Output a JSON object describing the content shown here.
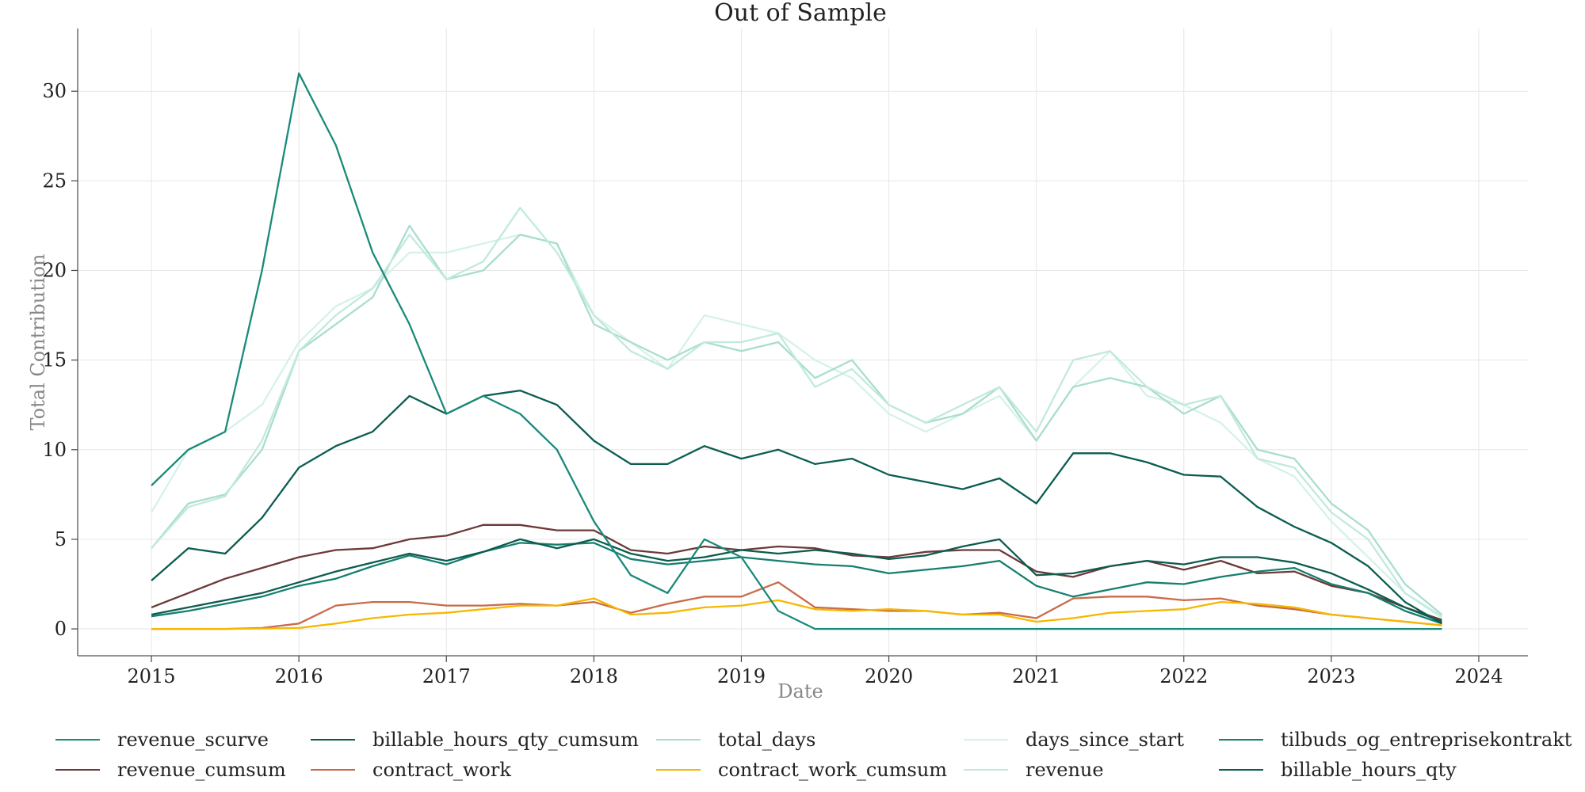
{
  "chart_data": {
    "type": "line",
    "title": "Out of Sample",
    "xlabel": "Date",
    "ylabel": "Total Contribution",
    "x_ticks": [
      "2015",
      "2016",
      "2017",
      "2018",
      "2019",
      "2020",
      "2021",
      "2022",
      "2023",
      "2024"
    ],
    "y_ticks": [
      "0",
      "5",
      "10",
      "15",
      "20",
      "25",
      "30"
    ],
    "xlim": [
      "2014-07",
      "2024-05"
    ],
    "ylim": [
      -1.5,
      33.5
    ],
    "grid": true,
    "legend_position": "bottom",
    "x": [
      "2015-01",
      "2015-04",
      "2015-07",
      "2015-10",
      "2016-01",
      "2016-04",
      "2016-07",
      "2016-10",
      "2017-01",
      "2017-04",
      "2017-07",
      "2017-10",
      "2018-01",
      "2018-04",
      "2018-07",
      "2018-10",
      "2019-01",
      "2019-04",
      "2019-07",
      "2019-10",
      "2020-01",
      "2020-04",
      "2020-07",
      "2020-10",
      "2021-01",
      "2021-04",
      "2021-07",
      "2021-10",
      "2022-01",
      "2022-04",
      "2022-07",
      "2022-10",
      "2023-01",
      "2023-04",
      "2023-07",
      "2023-10"
    ],
    "series": [
      {
        "name": "revenue_scurve",
        "color": "#1a8a7a",
        "values": [
          8,
          10,
          11,
          20,
          31,
          27,
          21,
          17,
          12,
          13,
          12,
          10,
          6,
          3,
          2,
          5,
          4,
          1,
          0,
          0,
          0,
          0,
          0,
          0,
          0,
          0,
          0,
          0,
          0,
          0,
          0,
          0,
          0,
          0,
          0,
          0
        ]
      },
      {
        "name": "billable_hours_qty_cumsum",
        "color": "#0d5c4e",
        "values": [
          0.8,
          1.2,
          1.6,
          2.0,
          2.6,
          3.2,
          3.7,
          4.2,
          3.8,
          4.3,
          5.0,
          4.5,
          5.0,
          4.2,
          3.8,
          4.0,
          4.4,
          4.2,
          4.4,
          4.2,
          3.9,
          4.1,
          4.6,
          5.0,
          3.0,
          3.1,
          3.5,
          3.8,
          3.6,
          4.0,
          4.0,
          3.7,
          3.1,
          2.2,
          1.2,
          0.4
        ]
      },
      {
        "name": "total_days",
        "color": "#a9ddd0",
        "values": [
          4.5,
          7.0,
          7.5,
          10.0,
          15.5,
          17.0,
          18.5,
          22.5,
          19.5,
          20.0,
          22.0,
          21.5,
          17.0,
          16.0,
          15.0,
          16.0,
          15.5,
          16.0,
          14.0,
          15.0,
          12.5,
          11.5,
          12.0,
          13.5,
          10.5,
          13.5,
          14.0,
          13.5,
          12.0,
          13.0,
          10.0,
          9.5,
          7.0,
          5.5,
          2.5,
          0.8
        ]
      },
      {
        "name": "days_since_start",
        "color": "#d5f2ea",
        "values": [
          6.5,
          10.0,
          11.0,
          12.5,
          16.0,
          18.0,
          19.0,
          21.0,
          21.0,
          21.5,
          22.0,
          21.5,
          17.5,
          16.0,
          14.5,
          17.5,
          17.0,
          16.5,
          15.0,
          14.0,
          12.0,
          11.0,
          12.0,
          13.0,
          10.5,
          13.5,
          15.5,
          13.0,
          12.5,
          11.5,
          9.5,
          8.5,
          6.0,
          4.0,
          2.0,
          0.6
        ]
      },
      {
        "name": "tilbuds_og_entreprisekontrakt",
        "color": "#157f6f",
        "values": [
          0.7,
          1.0,
          1.4,
          1.8,
          2.4,
          2.8,
          3.5,
          4.1,
          3.6,
          4.3,
          4.8,
          4.7,
          4.8,
          3.9,
          3.6,
          3.8,
          4.0,
          3.8,
          3.6,
          3.5,
          3.1,
          3.3,
          3.5,
          3.8,
          2.4,
          1.8,
          2.2,
          2.6,
          2.5,
          2.9,
          3.2,
          3.4,
          2.5,
          2.0,
          1.0,
          0.3
        ]
      },
      {
        "name": "revenue_cumsum",
        "color": "#6b3a38",
        "values": [
          1.2,
          2.0,
          2.8,
          3.4,
          4.0,
          4.4,
          4.5,
          5.0,
          5.2,
          5.8,
          5.8,
          5.5,
          5.5,
          4.4,
          4.2,
          4.6,
          4.4,
          4.6,
          4.5,
          4.1,
          4.0,
          4.3,
          4.4,
          4.4,
          3.2,
          2.9,
          3.5,
          3.8,
          3.3,
          3.8,
          3.1,
          3.2,
          2.4,
          2.0,
          1.2,
          0.5
        ]
      },
      {
        "name": "contract_work",
        "color": "#c96b48",
        "values": [
          0.0,
          0.0,
          0.0,
          0.05,
          0.3,
          1.3,
          1.5,
          1.5,
          1.3,
          1.3,
          1.4,
          1.3,
          1.5,
          0.9,
          1.4,
          1.8,
          1.8,
          2.6,
          1.2,
          1.1,
          1.0,
          1.0,
          0.8,
          0.9,
          0.6,
          1.7,
          1.8,
          1.8,
          1.6,
          1.7,
          1.3,
          1.1,
          0.8,
          0.6,
          0.4,
          0.2
        ]
      },
      {
        "name": "contract_work_cumsum",
        "color": "#f5b800",
        "values": [
          0.0,
          0.0,
          0.0,
          0.02,
          0.05,
          0.3,
          0.6,
          0.8,
          0.9,
          1.1,
          1.3,
          1.3,
          1.7,
          0.8,
          0.9,
          1.2,
          1.3,
          1.6,
          1.1,
          1.0,
          1.1,
          1.0,
          0.8,
          0.8,
          0.4,
          0.6,
          0.9,
          1.0,
          1.1,
          1.5,
          1.4,
          1.2,
          0.8,
          0.6,
          0.4,
          0.2
        ]
      },
      {
        "name": "revenue",
        "color": "#c2e9dd",
        "values": [
          4.5,
          6.8,
          7.4,
          10.5,
          15.5,
          17.5,
          19.0,
          22.0,
          19.5,
          20.5,
          23.5,
          21.0,
          17.5,
          15.5,
          14.5,
          16.0,
          16.0,
          16.5,
          13.5,
          14.5,
          12.5,
          11.5,
          12.5,
          13.5,
          11.0,
          15.0,
          15.5,
          13.5,
          12.5,
          13.0,
          9.5,
          9.0,
          6.5,
          5.0,
          2.0,
          0.7
        ]
      },
      {
        "name": "billable_hours_qty",
        "color": "#0b5d52",
        "values": [
          2.7,
          4.5,
          4.2,
          6.2,
          9.0,
          10.2,
          11.0,
          13.0,
          12.0,
          13.0,
          13.3,
          12.5,
          10.5,
          9.2,
          9.2,
          10.2,
          9.5,
          10.0,
          9.2,
          9.5,
          8.6,
          8.2,
          7.8,
          8.4,
          7.0,
          9.8,
          9.8,
          9.3,
          8.6,
          8.5,
          6.8,
          5.7,
          4.8,
          3.5,
          1.5,
          0.3
        ]
      }
    ]
  },
  "legend": {
    "items": [
      "revenue_scurve",
      "billable_hours_qty_cumsum",
      "total_days",
      "days_since_start",
      "tilbuds_og_entreprisekontrakt",
      "revenue_cumsum",
      "contract_work",
      "contract_work_cumsum",
      "revenue",
      "billable_hours_qty"
    ]
  }
}
